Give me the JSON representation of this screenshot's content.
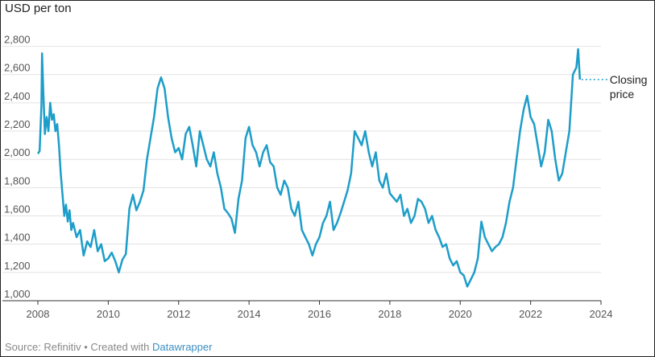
{
  "chart_data": {
    "type": "line",
    "unit_label": "USD per ton",
    "xlim": [
      2008,
      2024
    ],
    "ylim": [
      1000,
      2900
    ],
    "x_ticks": [
      2008,
      2010,
      2012,
      2014,
      2016,
      2018,
      2020,
      2022,
      2024
    ],
    "y_ticks": [
      1000,
      1200,
      1400,
      1600,
      1800,
      2000,
      2200,
      2400,
      2600,
      2800
    ],
    "y_tick_labels": [
      "1,000",
      "1,200",
      "1,400",
      "1,600",
      "1,800",
      "2,000",
      "2,200",
      "2,400",
      "2,600",
      "2,800"
    ],
    "grid": "horizontal",
    "line_color": "#1d9dc9",
    "annotation": {
      "line1": "Closing",
      "line2": "price",
      "value": 2565
    },
    "series": [
      {
        "x": [
          2008.0,
          2008.05,
          2008.1,
          2008.12,
          2008.15,
          2008.2,
          2008.25,
          2008.3,
          2008.35,
          2008.4,
          2008.45,
          2008.5,
          2008.55,
          2008.6,
          2008.65,
          2008.7,
          2008.75,
          2008.8,
          2008.85,
          2008.9,
          2008.95,
          2009.0,
          2009.1,
          2009.2,
          2009.3,
          2009.4,
          2009.5,
          2009.6,
          2009.7,
          2009.8,
          2009.9,
          2010.0,
          2010.1,
          2010.2,
          2010.3,
          2010.4,
          2010.5,
          2010.6,
          2010.7,
          2010.8,
          2010.9,
          2011.0,
          2011.1,
          2011.2,
          2011.3,
          2011.4,
          2011.5,
          2011.6,
          2011.7,
          2011.8,
          2011.9,
          2012.0,
          2012.1,
          2012.2,
          2012.3,
          2012.4,
          2012.5,
          2012.6,
          2012.7,
          2012.8,
          2012.9,
          2013.0,
          2013.1,
          2013.2,
          2013.3,
          2013.4,
          2013.5,
          2013.6,
          2013.7,
          2013.8,
          2013.9,
          2014.0,
          2014.1,
          2014.2,
          2014.3,
          2014.4,
          2014.5,
          2014.6,
          2014.7,
          2014.8,
          2014.9,
          2015.0,
          2015.1,
          2015.2,
          2015.3,
          2015.4,
          2015.5,
          2015.6,
          2015.7,
          2015.8,
          2015.9,
          2016.0,
          2016.1,
          2016.2,
          2016.3,
          2016.4,
          2016.5,
          2016.6,
          2016.7,
          2016.8,
          2016.9,
          2017.0,
          2017.1,
          2017.2,
          2017.3,
          2017.4,
          2017.5,
          2017.6,
          2017.7,
          2017.8,
          2017.9,
          2018.0,
          2018.1,
          2018.2,
          2018.3,
          2018.4,
          2018.5,
          2018.6,
          2018.7,
          2018.8,
          2018.9,
          2019.0,
          2019.1,
          2019.2,
          2019.3,
          2019.4,
          2019.5,
          2019.6,
          2019.7,
          2019.8,
          2019.9,
          2020.0,
          2020.1,
          2020.2,
          2020.3,
          2020.4,
          2020.5,
          2020.6,
          2020.7,
          2020.8,
          2020.9,
          2021.0,
          2021.1,
          2021.2,
          2021.3,
          2021.4,
          2021.5,
          2021.6,
          2021.7,
          2021.8,
          2021.9,
          2022.0,
          2022.1,
          2022.2,
          2022.3,
          2022.4,
          2022.5,
          2022.6,
          2022.7,
          2022.8,
          2022.9,
          2023.0,
          2023.1,
          2023.2,
          2023.3,
          2023.35,
          2023.4
        ],
        "y": [
          2040,
          2060,
          2380,
          2750,
          2500,
          2180,
          2300,
          2200,
          2400,
          2280,
          2320,
          2200,
          2250,
          2100,
          1900,
          1750,
          1600,
          1680,
          1560,
          1640,
          1500,
          1550,
          1450,
          1500,
          1320,
          1420,
          1380,
          1500,
          1350,
          1400,
          1280,
          1300,
          1340,
          1280,
          1200,
          1290,
          1330,
          1650,
          1750,
          1640,
          1700,
          1780,
          2000,
          2150,
          2300,
          2500,
          2580,
          2500,
          2300,
          2150,
          2050,
          2080,
          2000,
          2180,
          2230,
          2100,
          1950,
          2200,
          2100,
          2000,
          1950,
          2050,
          1900,
          1800,
          1650,
          1620,
          1580,
          1480,
          1720,
          1850,
          2150,
          2230,
          2100,
          2050,
          1950,
          2050,
          2100,
          1980,
          1950,
          1800,
          1750,
          1850,
          1800,
          1650,
          1600,
          1700,
          1500,
          1450,
          1400,
          1320,
          1400,
          1450,
          1550,
          1600,
          1700,
          1500,
          1550,
          1620,
          1700,
          1780,
          1900,
          2200,
          2150,
          2100,
          2200,
          2050,
          1950,
          2050,
          1850,
          1800,
          1900,
          1760,
          1730,
          1700,
          1750,
          1600,
          1650,
          1550,
          1600,
          1720,
          1700,
          1650,
          1550,
          1600,
          1500,
          1450,
          1380,
          1400,
          1300,
          1250,
          1280,
          1200,
          1180,
          1100,
          1150,
          1200,
          1300,
          1560,
          1450,
          1400,
          1350,
          1380,
          1400,
          1450,
          1550,
          1700,
          1800,
          2000,
          2200,
          2350,
          2450,
          2300,
          2250,
          2100,
          1950,
          2050,
          2280,
          2200,
          2000,
          1850,
          1900,
          2050,
          2200,
          2600,
          2650,
          2780,
          2565
        ]
      }
    ],
    "source": {
      "prefix": "Source: Refinitiv • Created with ",
      "link": "Datawrapper"
    }
  }
}
